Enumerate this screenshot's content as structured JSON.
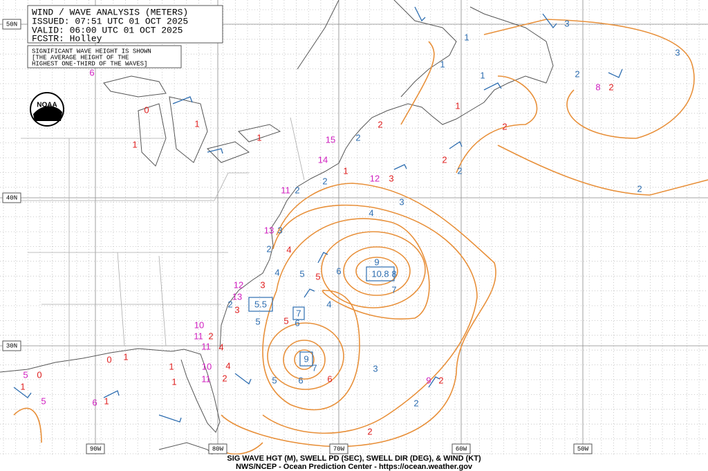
{
  "header": {
    "title": "WIND / WAVE ANALYSIS (METERS)",
    "issued": "ISSUED: 07:51 UTC 01 OCT 2025",
    "valid": "VALID:  06:00 UTC 01 OCT 2025",
    "forecaster": "FCSTR:  Holley"
  },
  "note": [
    "SIGNIFICANT WAVE HEIGHT IS SHOWN",
    "[THE AVERAGE HEIGHT OF THE",
    "HIGHEST ONE-THIRD OF THE WAVES]"
  ],
  "logo": "NOAA",
  "latitude_labels": [
    "50N",
    "40N",
    "30N"
  ],
  "longitude_labels": [
    "90W",
    "80W",
    "70W",
    "60W",
    "50W"
  ],
  "maxima": [
    "5.5",
    "10.8",
    "9",
    "7"
  ],
  "contour_labels": [
    3,
    3,
    2,
    2,
    1,
    1,
    1,
    2,
    3,
    4,
    9,
    8,
    7,
    6,
    5,
    4,
    5,
    6,
    7,
    6,
    5,
    3,
    2,
    2,
    2,
    2,
    3,
    2,
    2,
    4
  ],
  "wave_heights": [
    2,
    2,
    2,
    3,
    1,
    2,
    2,
    2,
    6,
    5,
    5,
    4,
    2,
    3,
    3,
    4,
    2,
    1,
    1,
    1,
    0,
    1,
    0,
    1,
    4,
    1,
    1,
    0,
    1,
    1
  ],
  "swell_periods": [
    8,
    12,
    9,
    14,
    15,
    11,
    13,
    11,
    10,
    11,
    10,
    11,
    12,
    13,
    5,
    5,
    6,
    6
  ],
  "footer": {
    "line1": "SIG WAVE HGT (M), SWELL PD (SEC), SWELL DIR (DEG), & WIND (KT)",
    "line2": "NWS/NCEP - Ocean Prediction Center - https://ocean.weather.gov"
  }
}
